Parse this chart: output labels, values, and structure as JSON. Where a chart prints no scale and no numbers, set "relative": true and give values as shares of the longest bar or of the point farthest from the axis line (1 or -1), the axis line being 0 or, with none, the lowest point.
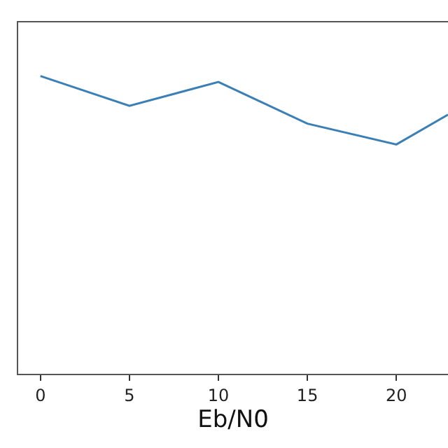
{
  "chart_data": {
    "type": "line",
    "relative": true,
    "xlabel": "Eb/N0",
    "x": [
      0,
      5,
      10,
      15,
      20,
      22.9
    ],
    "series": [
      {
        "color": "#3a7fb5",
        "values": [
          1,
          0.9,
          0.98,
          0.84,
          0.77,
          0.87
        ]
      }
    ],
    "xlim": [
      -1.25,
      22.9
    ],
    "xticks": [
      0,
      5,
      10,
      15,
      20
    ],
    "tick_labels": "x",
    "legend": false,
    "marker": "none",
    "line_style": "solid"
  }
}
